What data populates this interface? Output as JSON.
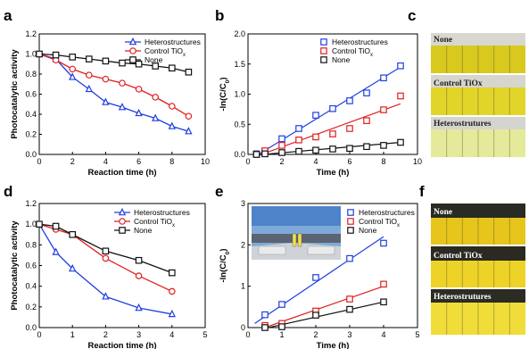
{
  "panel_letters": [
    "a",
    "b",
    "c",
    "d",
    "e",
    "f"
  ],
  "colors": {
    "heterostructures": "#1f3fe0",
    "control": "#e01f1f",
    "none": "#111111"
  },
  "chart_data": [
    {
      "id": "a",
      "type": "line",
      "xlabel": "Reaction time (h)",
      "ylabel": "Photocatalytic activity",
      "xlim": [
        0,
        10
      ],
      "ylim": [
        0,
        1.2
      ],
      "xticks": [
        "0",
        "2",
        "4",
        "6",
        "8",
        "10"
      ],
      "yticks": [
        "0.0",
        "0.2",
        "0.4",
        "0.6",
        "0.8",
        "1.0",
        "1.2"
      ],
      "legend": "top-right",
      "series": [
        {
          "name": "Heterostructures",
          "marker": "triangle",
          "color": "#1f3fe0",
          "points": [
            [
              0,
              1.0
            ],
            [
              1,
              0.95
            ],
            [
              2,
              0.77
            ],
            [
              3,
              0.65
            ],
            [
              4,
              0.52
            ],
            [
              5,
              0.47
            ],
            [
              6,
              0.41
            ],
            [
              7,
              0.36
            ],
            [
              8,
              0.28
            ],
            [
              9,
              0.23
            ]
          ]
        },
        {
          "name": "Control TiOx",
          "marker": "circle",
          "color": "#e01f1f",
          "points": [
            [
              0,
              1.0
            ],
            [
              1,
              0.94
            ],
            [
              2,
              0.85
            ],
            [
              3,
              0.79
            ],
            [
              4,
              0.75
            ],
            [
              5,
              0.71
            ],
            [
              6,
              0.65
            ],
            [
              7,
              0.57
            ],
            [
              8,
              0.48
            ],
            [
              9,
              0.38
            ]
          ]
        },
        {
          "name": "None",
          "marker": "square",
          "color": "#111111",
          "points": [
            [
              0,
              1.0
            ],
            [
              1,
              0.99
            ],
            [
              2,
              0.97
            ],
            [
              3,
              0.95
            ],
            [
              4,
              0.93
            ],
            [
              5,
              0.91
            ],
            [
              6,
              0.9
            ],
            [
              7,
              0.88
            ],
            [
              8,
              0.86
            ],
            [
              9,
              0.82
            ]
          ]
        }
      ]
    },
    {
      "id": "b",
      "type": "scatter",
      "xlabel": "Time (h)",
      "ylabel": "-ln(C/C0)",
      "xlim": [
        0,
        10
      ],
      "ylim": [
        0,
        2.0
      ],
      "xticks": [
        "0",
        "2",
        "4",
        "6",
        "8",
        "10"
      ],
      "yticks": [
        "0.0",
        "0.5",
        "1.0",
        "1.5",
        "2.0"
      ],
      "legend": "top-left",
      "series": [
        {
          "name": "Heterostructures",
          "marker": "square-open",
          "color": "#1f3fe0",
          "points": [
            [
              0.5,
              0.01
            ],
            [
              1,
              0.05
            ],
            [
              2,
              0.26
            ],
            [
              3,
              0.43
            ],
            [
              4,
              0.65
            ],
            [
              5,
              0.76
            ],
            [
              6,
              0.89
            ],
            [
              7,
              1.02
            ],
            [
              8,
              1.27
            ],
            [
              9,
              1.47
            ]
          ],
          "fit": [
            [
              0.5,
              -0.02
            ],
            [
              9,
              1.45
            ]
          ]
        },
        {
          "name": "Control TiOx",
          "marker": "square-open",
          "color": "#e01f1f",
          "points": [
            [
              0.5,
              0.0
            ],
            [
              1,
              0.06
            ],
            [
              2,
              0.15
            ],
            [
              3,
              0.24
            ],
            [
              4,
              0.29
            ],
            [
              5,
              0.34
            ],
            [
              6,
              0.43
            ],
            [
              7,
              0.56
            ],
            [
              8,
              0.74
            ],
            [
              9,
              0.97
            ]
          ],
          "fit": [
            [
              0.5,
              -0.03
            ],
            [
              9,
              0.84
            ]
          ]
        },
        {
          "name": "None",
          "marker": "square-open",
          "color": "#111111",
          "points": [
            [
              0.5,
              0.0
            ],
            [
              1,
              0.01
            ],
            [
              2,
              0.03
            ],
            [
              3,
              0.05
            ],
            [
              4,
              0.07
            ],
            [
              5,
              0.09
            ],
            [
              6,
              0.1
            ],
            [
              7,
              0.13
            ],
            [
              8,
              0.15
            ],
            [
              9,
              0.2
            ]
          ],
          "fit": [
            [
              0.5,
              -0.01
            ],
            [
              9,
              0.2
            ]
          ]
        }
      ]
    },
    {
      "id": "d",
      "type": "line",
      "xlabel": "Reaction time (h)",
      "ylabel": "Photocatalytic activity",
      "xlim": [
        0,
        5
      ],
      "ylim": [
        0,
        1.2
      ],
      "xticks": [
        "0",
        "1",
        "2",
        "3",
        "4",
        "5"
      ],
      "yticks": [
        "0.0",
        "0.2",
        "0.4",
        "0.6",
        "0.8",
        "1.0",
        "1.2"
      ],
      "legend": "top-right",
      "series": [
        {
          "name": "Heterostructures",
          "marker": "triangle",
          "color": "#1f3fe0",
          "points": [
            [
              0,
              1.0
            ],
            [
              0.5,
              0.73
            ],
            [
              1,
              0.57
            ],
            [
              2,
              0.3
            ],
            [
              3,
              0.19
            ],
            [
              4,
              0.13
            ]
          ]
        },
        {
          "name": "Control TiOx",
          "marker": "circle",
          "color": "#e01f1f",
          "points": [
            [
              0,
              1.0
            ],
            [
              0.5,
              0.95
            ],
            [
              1,
              0.9
            ],
            [
              2,
              0.67
            ],
            [
              3,
              0.5
            ],
            [
              4,
              0.35
            ]
          ]
        },
        {
          "name": "None",
          "marker": "square",
          "color": "#111111",
          "points": [
            [
              0,
              1.0
            ],
            [
              0.5,
              0.98
            ],
            [
              1,
              0.9
            ],
            [
              2,
              0.74
            ],
            [
              3,
              0.65
            ],
            [
              4,
              0.53
            ]
          ]
        }
      ]
    },
    {
      "id": "e",
      "type": "scatter",
      "xlabel": "Time (h)",
      "ylabel": "-ln(C/C0)",
      "xlim": [
        0,
        5
      ],
      "ylim": [
        0,
        3
      ],
      "xticks": [
        "0",
        "1",
        "2",
        "3",
        "4",
        "5"
      ],
      "yticks": [
        "0",
        "1",
        "2",
        "3"
      ],
      "legend": "top-right",
      "series": [
        {
          "name": "Heterostructures",
          "marker": "square-open",
          "color": "#1f3fe0",
          "points": [
            [
              0.5,
              0.31
            ],
            [
              1,
              0.56
            ],
            [
              2,
              1.21
            ],
            [
              3,
              1.67
            ],
            [
              4,
              2.04
            ]
          ],
          "fit": [
            [
              0.2,
              0.1
            ],
            [
              4,
              2.2
            ]
          ]
        },
        {
          "name": "Control TiOx",
          "marker": "square-open",
          "color": "#e01f1f",
          "points": [
            [
              0.5,
              0.05
            ],
            [
              1,
              0.1
            ],
            [
              2,
              0.4
            ],
            [
              3,
              0.69
            ],
            [
              4,
              1.05
            ]
          ],
          "fit": [
            [
              0.5,
              0.0
            ],
            [
              4,
              1.0
            ]
          ]
        },
        {
          "name": "None",
          "marker": "square-open",
          "color": "#111111",
          "points": [
            [
              0.5,
              0.0
            ],
            [
              1,
              0.02
            ],
            [
              2,
              0.3
            ],
            [
              3,
              0.44
            ],
            [
              4,
              0.62
            ]
          ],
          "fit": [
            [
              0.5,
              -0.02
            ],
            [
              4,
              0.62
            ]
          ]
        }
      ]
    }
  ],
  "photo_panels": [
    {
      "id": "c",
      "labels": [
        "None",
        "Control TiOx",
        "Heterostrutures"
      ]
    },
    {
      "id": "f",
      "labels": [
        "None",
        "Control TiOx",
        "Heterostrutures"
      ]
    }
  ]
}
